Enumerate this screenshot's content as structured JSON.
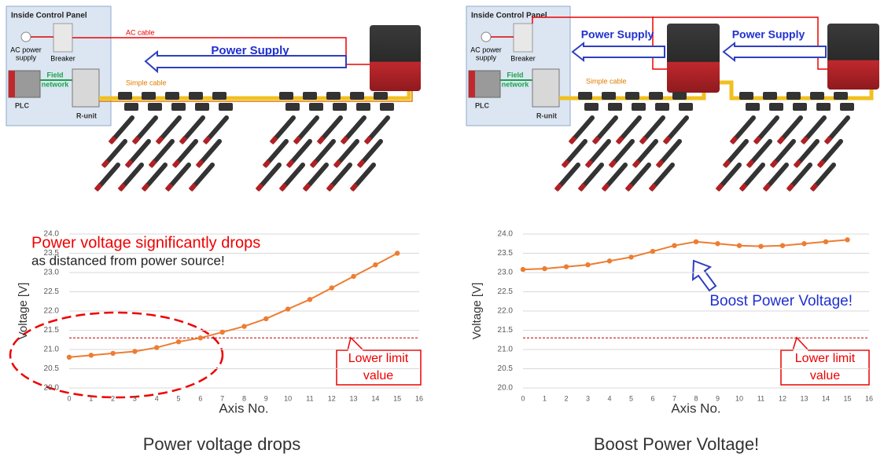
{
  "diagrams": [
    {
      "panel_title": "Inside Control Panel",
      "ac_power": [
        "AC power",
        "supply"
      ],
      "breaker": "Breaker",
      "ac_cable": "AC cable",
      "power_supply": "Power Supply",
      "field_network": [
        "Field",
        "network"
      ],
      "plc": "PLC",
      "r_unit": "R-unit",
      "simple_cable": "Simple cable"
    },
    {
      "panel_title": "Inside Control Panel",
      "ac_power": [
        "AC power",
        "supply"
      ],
      "breaker": "Breaker",
      "power_supply": [
        "Power Supply",
        "Power Supply"
      ],
      "field_network": [
        "Field",
        "network"
      ],
      "plc": "PLC",
      "r_unit": "R-unit",
      "simple_cable": "Simple cable"
    }
  ],
  "chart_data": [
    {
      "type": "line",
      "caption": "Power voltage drops",
      "x_label": "Axis No.",
      "y_label": "Voltage [V]",
      "x": [
        0,
        1,
        2,
        3,
        4,
        5,
        6,
        7,
        8,
        9,
        10,
        11,
        12,
        13,
        14,
        15
      ],
      "series": [
        {
          "color": "#ed7d31",
          "values": [
            20.8,
            20.85,
            20.9,
            20.95,
            21.05,
            21.2,
            21.3,
            21.45,
            21.6,
            21.8,
            22.05,
            22.3,
            22.6,
            22.9,
            23.2,
            23.5
          ]
        }
      ],
      "xlim": [
        0,
        16
      ],
      "xticks": [
        0,
        1,
        2,
        3,
        4,
        5,
        6,
        7,
        8,
        9,
        10,
        11,
        12,
        13,
        14,
        15,
        16
      ],
      "ylim": [
        20,
        24
      ],
      "yticks": [
        {
          "value": 20,
          "label": "20.0"
        },
        {
          "value": 20.5,
          "label": "20.5"
        },
        {
          "value": 21,
          "label": "21.0"
        },
        {
          "value": 21.5,
          "label": "21.5"
        },
        {
          "value": 22,
          "label": "22.0"
        },
        {
          "value": 22.5,
          "label": "22.5"
        },
        {
          "value": 23,
          "label": "23.0"
        },
        {
          "value": 23.5,
          "label": "23.5"
        },
        {
          "value": 24,
          "label": "24.0"
        }
      ],
      "grid": true,
      "lower_limit": 21.3,
      "lower_limit_color": "#c00000",
      "lower_limit_label": [
        "Lower limit",
        "value"
      ],
      "annotations": [
        "Power voltage significantly drops",
        "as distanced from power source!"
      ]
    },
    {
      "type": "line",
      "caption": "Boost Power Voltage!",
      "x_label": "Axis No.",
      "y_label": "Voltage [V]",
      "x": [
        0,
        1,
        2,
        3,
        4,
        5,
        6,
        7,
        8,
        9,
        10,
        11,
        12,
        13,
        14,
        15
      ],
      "series": [
        {
          "color": "#ed7d31",
          "values": [
            23.08,
            23.1,
            23.15,
            23.2,
            23.3,
            23.4,
            23.55,
            23.7,
            23.8,
            23.75,
            23.7,
            23.68,
            23.7,
            23.75,
            23.8,
            23.85
          ]
        }
      ],
      "xlim": [
        0,
        16
      ],
      "xticks": [
        0,
        1,
        2,
        3,
        4,
        5,
        6,
        7,
        8,
        9,
        10,
        11,
        12,
        13,
        14,
        15,
        16
      ],
      "ylim": [
        20,
        24
      ],
      "yticks": [
        {
          "value": 20,
          "label": "20.0"
        },
        {
          "value": 20.5,
          "label": "20.5"
        },
        {
          "value": 21,
          "label": "21.0"
        },
        {
          "value": 21.5,
          "label": "21.5"
        },
        {
          "value": 22,
          "label": "22.0"
        },
        {
          "value": 22.5,
          "label": "22.5"
        },
        {
          "value": 23,
          "label": "23.0"
        },
        {
          "value": 23.5,
          "label": "23.5"
        },
        {
          "value": 24,
          "label": "24.0"
        }
      ],
      "grid": true,
      "lower_limit": 21.3,
      "lower_limit_color": "#c00000",
      "lower_limit_label": [
        "Lower limit",
        "value"
      ],
      "annotations": [
        "Boost Power Voltage!"
      ]
    }
  ]
}
